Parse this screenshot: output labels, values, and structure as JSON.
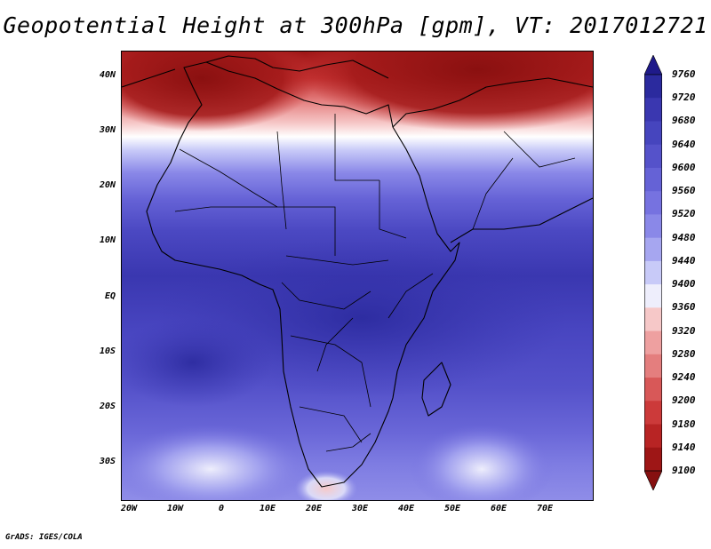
{
  "title": "Geopotential Height at 300hPa [gpm], VT: 2017012721",
  "credit": "GrADS: IGES/COLA",
  "y_axis_labels": [
    "40N",
    "30N",
    "20N",
    "10N",
    "EQ",
    "10S",
    "20S",
    "30S"
  ],
  "x_axis_labels": [
    "20W",
    "10W",
    "0",
    "10E",
    "20E",
    "30E",
    "40E",
    "50E",
    "60E",
    "70E"
  ],
  "colorbar": {
    "labels": [
      "9760",
      "9720",
      "9680",
      "9640",
      "9600",
      "9560",
      "9520",
      "9480",
      "9440",
      "9400",
      "9360",
      "9320",
      "9280",
      "9240",
      "9200",
      "9180",
      "9140",
      "9100"
    ],
    "colors": [
      "#1f1a8a",
      "#2b2a9e",
      "#3a37b0",
      "#4645be",
      "#5552ca",
      "#6562d6",
      "#7672e0",
      "#8a88e8",
      "#a6a6f0",
      "#c8caf8",
      "#eeeefc",
      "#f6c8c8",
      "#eea0a0",
      "#e47e7e",
      "#d85858",
      "#cc3a3a",
      "#b82424",
      "#9e1616",
      "#861010"
    ]
  },
  "map": {
    "lon_range": [
      -22,
      80
    ],
    "lat_range": [
      -37,
      45
    ],
    "field": "Geopotential Height at 300hPa"
  }
}
